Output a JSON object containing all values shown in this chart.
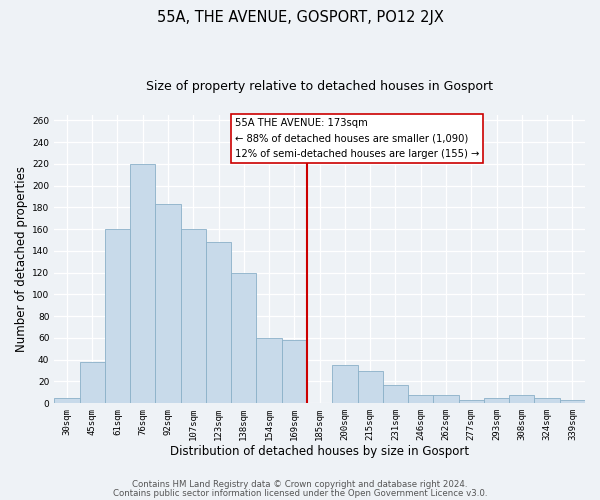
{
  "title": "55A, THE AVENUE, GOSPORT, PO12 2JX",
  "subtitle": "Size of property relative to detached houses in Gosport",
  "xlabel": "Distribution of detached houses by size in Gosport",
  "ylabel": "Number of detached properties",
  "bar_color": "#c8daea",
  "bar_edge_color": "#8ab0c8",
  "categories": [
    "30sqm",
    "45sqm",
    "61sqm",
    "76sqm",
    "92sqm",
    "107sqm",
    "123sqm",
    "138sqm",
    "154sqm",
    "169sqm",
    "185sqm",
    "200sqm",
    "215sqm",
    "231sqm",
    "246sqm",
    "262sqm",
    "277sqm",
    "293sqm",
    "308sqm",
    "324sqm",
    "339sqm"
  ],
  "values": [
    5,
    38,
    160,
    220,
    183,
    160,
    148,
    120,
    60,
    58,
    0,
    35,
    30,
    17,
    8,
    8,
    3,
    5,
    8,
    5,
    3
  ],
  "ylim": [
    0,
    265
  ],
  "yticks": [
    0,
    20,
    40,
    60,
    80,
    100,
    120,
    140,
    160,
    180,
    200,
    220,
    240,
    260
  ],
  "vline_x": 9.5,
  "vline_color": "#cc0000",
  "annotation_title": "55A THE AVENUE: 173sqm",
  "annotation_line1": "← 88% of detached houses are smaller (1,090)",
  "annotation_line2": "12% of semi-detached houses are larger (155) →",
  "footnote1": "Contains HM Land Registry data © Crown copyright and database right 2024.",
  "footnote2": "Contains public sector information licensed under the Open Government Licence v3.0.",
  "bg_color": "#eef2f6",
  "plot_bg_color": "#eef2f6",
  "title_fontsize": 10.5,
  "subtitle_fontsize": 9,
  "axis_label_fontsize": 8.5,
  "tick_fontsize": 6.5,
  "footnote_fontsize": 6.2
}
